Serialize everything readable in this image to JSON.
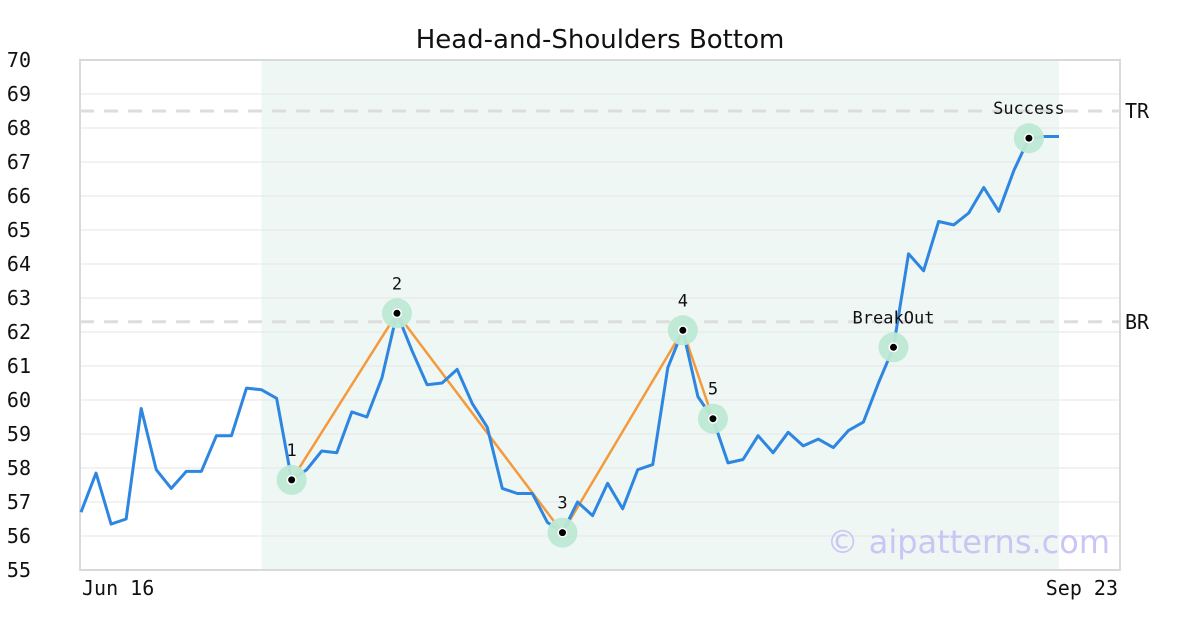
{
  "chart_data": {
    "type": "line",
    "title": "Head-and-Shoulders Bottom",
    "ylim": [
      55,
      70
    ],
    "yticks": [
      55,
      56,
      57,
      58,
      59,
      60,
      61,
      62,
      63,
      64,
      65,
      66,
      67,
      68,
      69,
      70
    ],
    "xtick_labels": [
      "Jun 16",
      "Sep 23"
    ],
    "grid": "horizontal",
    "pattern_region": {
      "x_start": 12,
      "x_end": 65
    },
    "series": [
      {
        "values": [
          56.7,
          57.85,
          56.35,
          56.5,
          59.75,
          57.95,
          57.4,
          57.9,
          57.9,
          58.95,
          58.95,
          60.35,
          60.3,
          60.05,
          57.65,
          57.95,
          58.5,
          58.45,
          59.65,
          59.5,
          60.65,
          62.55,
          61.45,
          60.45,
          60.5,
          60.9,
          59.9,
          59.2,
          57.4,
          57.25,
          57.25,
          56.4,
          56.1,
          57.0,
          56.6,
          57.55,
          56.8,
          57.95,
          58.1,
          60.95,
          62.05,
          60.1,
          59.45,
          58.15,
          58.25,
          58.95,
          58.45,
          59.05,
          58.65,
          58.85,
          58.6,
          59.1,
          59.35,
          60.5,
          61.55,
          64.3,
          63.8,
          65.25,
          65.15,
          65.5,
          66.25,
          65.55,
          66.75,
          67.7,
          67.75,
          67.75
        ]
      }
    ],
    "pattern_points": [
      {
        "label": "1",
        "x": 14,
        "y": 57.65
      },
      {
        "label": "2",
        "x": 21,
        "y": 62.55
      },
      {
        "label": "3",
        "x": 32,
        "y": 56.1
      },
      {
        "label": "4",
        "x": 40,
        "y": 62.05
      },
      {
        "label": "5",
        "x": 42,
        "y": 59.45
      }
    ],
    "event_points": [
      {
        "label": "BreakOut",
        "x": 54,
        "y": 61.55
      },
      {
        "label": "Success",
        "x": 63,
        "y": 67.7
      }
    ],
    "levels": [
      {
        "label": "TR",
        "y": 68.5
      },
      {
        "label": "BR",
        "y": 62.3
      }
    ],
    "watermark": "© aipatterns.com",
    "colors": {
      "line": "#2e86e0",
      "pattern_line": "#f59a3c",
      "highlight": "#bde8d4",
      "region": "#eef7f3",
      "level_line": "#dddddd",
      "grid": "#e6e6e6"
    }
  }
}
